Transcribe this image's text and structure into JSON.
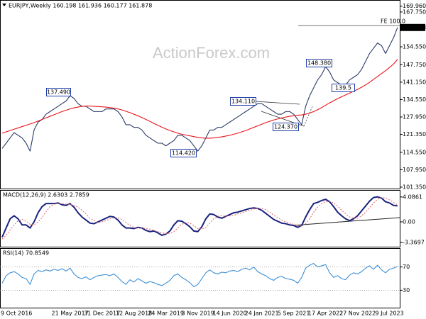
{
  "chart_data": [
    {
      "type": "line",
      "title": "EURJPY,Weekly  160.198 161.936 160.177 161.878",
      "watermark": "ActionForex.com",
      "annotations": [
        "137.490",
        "114.420",
        "134.110",
        "124.370",
        "148.380",
        "139.5",
        "FE 100.0"
      ],
      "ylim": [
        100.8,
        172.3
      ],
      "yticks": [
        {
          "value": 169.96,
          "label": "169.960"
        },
        {
          "value": 167.75,
          "label": "167.750"
        },
        {
          "value": 161.878,
          "label": "161.878"
        },
        {
          "value": 154.55,
          "label": "154.550"
        },
        {
          "value": 147.75,
          "label": "147.750"
        },
        {
          "value": 141.15,
          "label": "141.150"
        },
        {
          "value": 134.55,
          "label": "134.550"
        },
        {
          "value": 127.95,
          "label": "127.950"
        },
        {
          "value": 121.35,
          "label": "121.350"
        },
        {
          "value": 114.55,
          "label": "114.550"
        },
        {
          "value": 107.95,
          "label": "107.950"
        },
        {
          "value": 101.35,
          "label": "101.350"
        }
      ],
      "series": [
        {
          "color": "#2b3a67",
          "style": "solid",
          "values": [
            116,
            118,
            120,
            122,
            121,
            120,
            118,
            115,
            123,
            126,
            127,
            129,
            130,
            131,
            132,
            133,
            134,
            136,
            135,
            133,
            132,
            132,
            131,
            130,
            130,
            130,
            131,
            131,
            131,
            130,
            128,
            125,
            125,
            124,
            124,
            123,
            121,
            120,
            119,
            118,
            118,
            117,
            118,
            119,
            121,
            121,
            120,
            119,
            117,
            115,
            117,
            120,
            123,
            123,
            124,
            124,
            125,
            126,
            127,
            128,
            129,
            130,
            131,
            132,
            133,
            133,
            132,
            131,
            130,
            129,
            129,
            130,
            130,
            129,
            127,
            125,
            132,
            136,
            139,
            142,
            144,
            147,
            145,
            142,
            141,
            140,
            140,
            142,
            143,
            144,
            146,
            149,
            152,
            154,
            156,
            155,
            152,
            155,
            158,
            161.878
          ]
        },
        {
          "color": "#e8141c",
          "style": "solid",
          "values": [
            121.8,
            122.3,
            122.8,
            123.3,
            123.8,
            124.3,
            124.8,
            125.3,
            125.8,
            126.4,
            127,
            127.6,
            128.2,
            128.8,
            129.4,
            130,
            130.5,
            131,
            131.4,
            131.7,
            132,
            132.1,
            132.1,
            132,
            131.9,
            131.8,
            131.7,
            131.5,
            131.3,
            131,
            130.6,
            130.1,
            129.6,
            129,
            128.4,
            127.7,
            127,
            126.3,
            125.5,
            124.8,
            124.1,
            123.4,
            122.8,
            122.3,
            121.8,
            121.4,
            121.1,
            120.8,
            120.5,
            120.2,
            120,
            119.9,
            119.9,
            120,
            120.2,
            120.4,
            120.7,
            121,
            121.4,
            121.8,
            122.3,
            122.8,
            123.4,
            124,
            124.6,
            125.2,
            125.8,
            126.3,
            126.8,
            127.2,
            127.6,
            127.9,
            128.2,
            128.4,
            128.6,
            128.7,
            129,
            129.4,
            130,
            130.7,
            131.5,
            132.4,
            133.3,
            134.1,
            134.9,
            135.6,
            136.3,
            137,
            137.7,
            138.4,
            139.2,
            140.1,
            141.1,
            142.2,
            143.3,
            144.4,
            145.5,
            146.7,
            148,
            149.8
          ]
        }
      ]
    },
    {
      "type": "line",
      "title": "MACD(12,26,9) 2.6303 2.7859",
      "ylim": [
        -4.07,
        5.23
      ],
      "yticks": [
        4.0861,
        {
          "value": 0,
          "label": "0.00"
        },
        -3.3697
      ],
      "series": [
        {
          "color": "#1a237e",
          "style": "solid",
          "values": [
            -2.5,
            -1,
            0.5,
            1,
            0.5,
            -0.5,
            -0.5,
            -1,
            0,
            1.5,
            2.5,
            3,
            3,
            3,
            3.1,
            2.8,
            2.7,
            3,
            2.4,
            1.5,
            0.8,
            0.3,
            -0.2,
            -0.3,
            0,
            0.3,
            0.6,
            0.9,
            0.8,
            0.3,
            -0.5,
            -1,
            -1,
            -1.1,
            -0.9,
            -1,
            -1.4,
            -1.6,
            -1.5,
            -1.8,
            -2.2,
            -2,
            -1.5,
            -0.5,
            0.2,
            0.1,
            -0.3,
            -0.8,
            -1.5,
            -1.6,
            -0.8,
            0.5,
            1.3,
            1.2,
            0.8,
            0.6,
            0.9,
            1.2,
            1.5,
            1.6,
            1.8,
            2,
            2.2,
            2.3,
            2.2,
            1.9,
            1.4,
            0.9,
            0.4,
            0.1,
            -0.2,
            -0.3,
            -0.5,
            -0.6,
            -0.9,
            -0.6,
            0.8,
            2,
            3,
            3.2,
            3.5,
            3.7,
            3.3,
            2.5,
            1.6,
            1,
            0.5,
            0.2,
            0.5,
            1,
            1.8,
            2.6,
            3.4,
            4,
            4.1,
            3.9,
            3.3,
            3.1,
            2.7,
            2.6303
          ]
        },
        {
          "color": "#e57373",
          "style": "dotted",
          "values": [
            -2.8,
            -2.2,
            -1.3,
            -0.5,
            0.2,
            0.4,
            0.1,
            -0.4,
            -0.5,
            0,
            0.7,
            1.7,
            2.5,
            2.9,
            3,
            3,
            2.9,
            2.9,
            2.7,
            2.4,
            1.9,
            1.3,
            0.6,
            0.2,
            -0.1,
            0,
            0.2,
            0.5,
            0.7,
            0.7,
            0.4,
            -0.1,
            -0.6,
            -0.9,
            -1,
            -1,
            -1.1,
            -1.2,
            -1.4,
            -1.6,
            -1.8,
            -1.9,
            -1.9,
            -1.6,
            -1,
            -0.4,
            -0.1,
            -0.2,
            -0.6,
            -1.1,
            -1.2,
            -0.9,
            -0.2,
            0.5,
            0.9,
            1,
            0.9,
            1,
            1.1,
            1.3,
            1.5,
            1.7,
            1.9,
            2.1,
            2.2,
            2.2,
            2,
            1.6,
            1.1,
            0.7,
            0.3,
            0,
            -0.2,
            -0.4,
            -0.6,
            -0.7,
            -0.3,
            0.5,
            1.6,
            2.4,
            3,
            3.3,
            3.4,
            3.1,
            2.6,
            1.9,
            1.3,
            0.8,
            0.6,
            0.6,
            1,
            1.6,
            2.3,
            3.1,
            3.7,
            4,
            3.9,
            3.6,
            3.2,
            2.7859
          ]
        }
      ]
    },
    {
      "type": "line",
      "title": "RSI(14) 70.8549",
      "ylim": [
        0,
        100
      ],
      "yticks": [
        70,
        30
      ],
      "grid": true,
      "categories": [
        "9 Oct 2016",
        null,
        null,
        null,
        null,
        null,
        null,
        null,
        null,
        null,
        null,
        null,
        null,
        null,
        null,
        null,
        null,
        "21 May 2017",
        null,
        null,
        null,
        null,
        null,
        null,
        null,
        "31 Dec 2017",
        null,
        null,
        null,
        null,
        null,
        null,
        null,
        "12 Aug 2018",
        null,
        null,
        null,
        null,
        null,
        null,
        null,
        "24 Mar 2019",
        null,
        null,
        null,
        null,
        null,
        null,
        null,
        "3 Nov 2019",
        null,
        null,
        null,
        null,
        null,
        null,
        null,
        "14 Jun 2020",
        null,
        null,
        null,
        null,
        null,
        null,
        null,
        "24 Jan 2021",
        null,
        null,
        null,
        null,
        null,
        null,
        null,
        "5 Sep 2021",
        null,
        null,
        null,
        null,
        null,
        null,
        null,
        "17 Apr 2022",
        null,
        null,
        null,
        null,
        null,
        null,
        null,
        "27 Nov 2022",
        null,
        null,
        null,
        null,
        null,
        null,
        null,
        "9 Jul 2023",
        null,
        null
      ],
      "series": [
        {
          "color": "#3d8fd6",
          "style": "solid",
          "values": [
            42,
            55,
            60,
            62,
            58,
            52,
            50,
            40,
            58,
            64,
            62,
            65,
            63,
            66,
            64,
            67,
            63,
            68,
            58,
            52,
            50,
            53,
            48,
            52,
            55,
            56,
            57,
            55,
            58,
            52,
            45,
            40,
            48,
            44,
            50,
            46,
            42,
            45,
            43,
            40,
            38,
            42,
            47,
            55,
            58,
            52,
            48,
            43,
            36,
            40,
            50,
            60,
            65,
            60,
            58,
            61,
            60,
            63,
            64,
            62,
            66,
            68,
            65,
            70,
            62,
            58,
            55,
            50,
            47,
            52,
            54,
            50,
            49,
            47,
            42,
            52,
            68,
            73,
            76,
            70,
            72,
            74,
            60,
            52,
            55,
            50,
            48,
            56,
            60,
            58,
            62,
            68,
            72,
            66,
            73,
            65,
            60,
            66,
            68,
            70.8549
          ]
        }
      ]
    }
  ]
}
